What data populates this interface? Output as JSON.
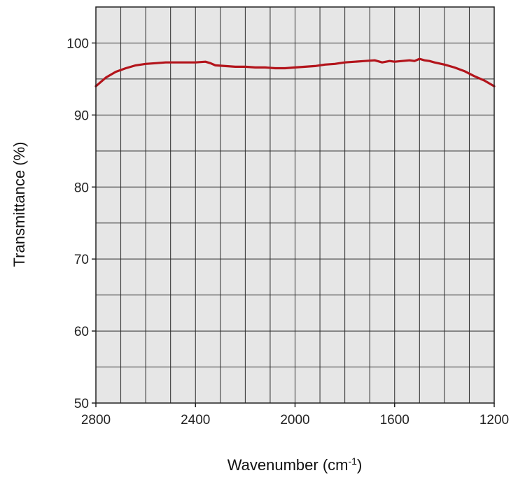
{
  "chart_data": {
    "type": "line",
    "xlabel": "Wavenumber (cm",
    "xlabel_sup": "-1",
    "xlabel_close": ")",
    "ylabel": "Transmittance (%)",
    "xlim": [
      2800,
      1200
    ],
    "ylim": [
      50,
      105
    ],
    "x_reversed": true,
    "grid": true,
    "x_ticks": [
      "2800",
      "2400",
      "2000",
      "1600",
      "1200"
    ],
    "y_ticks": [
      "100",
      "90",
      "80",
      "70",
      "60",
      "50"
    ],
    "series": [
      {
        "color": "#b3141b",
        "x": [
          2800,
          2760,
          2720,
          2680,
          2640,
          2600,
          2560,
          2520,
          2480,
          2440,
          2400,
          2360,
          2340,
          2320,
          2280,
          2240,
          2200,
          2160,
          2120,
          2080,
          2040,
          2000,
          1960,
          1920,
          1880,
          1840,
          1800,
          1760,
          1720,
          1680,
          1650,
          1620,
          1600,
          1570,
          1540,
          1520,
          1500,
          1480,
          1460,
          1440,
          1400,
          1360,
          1320,
          1280,
          1240,
          1200
        ],
        "y": [
          94.0,
          95.2,
          96.0,
          96.5,
          96.9,
          97.1,
          97.2,
          97.3,
          97.3,
          97.3,
          97.3,
          97.4,
          97.2,
          96.9,
          96.8,
          96.7,
          96.7,
          96.6,
          96.6,
          96.5,
          96.5,
          96.6,
          96.7,
          96.8,
          97.0,
          97.1,
          97.3,
          97.4,
          97.5,
          97.6,
          97.3,
          97.5,
          97.4,
          97.5,
          97.6,
          97.5,
          97.8,
          97.6,
          97.5,
          97.3,
          97.0,
          96.6,
          96.1,
          95.4,
          94.8,
          94.0
        ]
      }
    ],
    "colors": {
      "plot_background": "#e6e6e6",
      "grid": "#2b2b2b",
      "line": "#b3141b"
    }
  }
}
